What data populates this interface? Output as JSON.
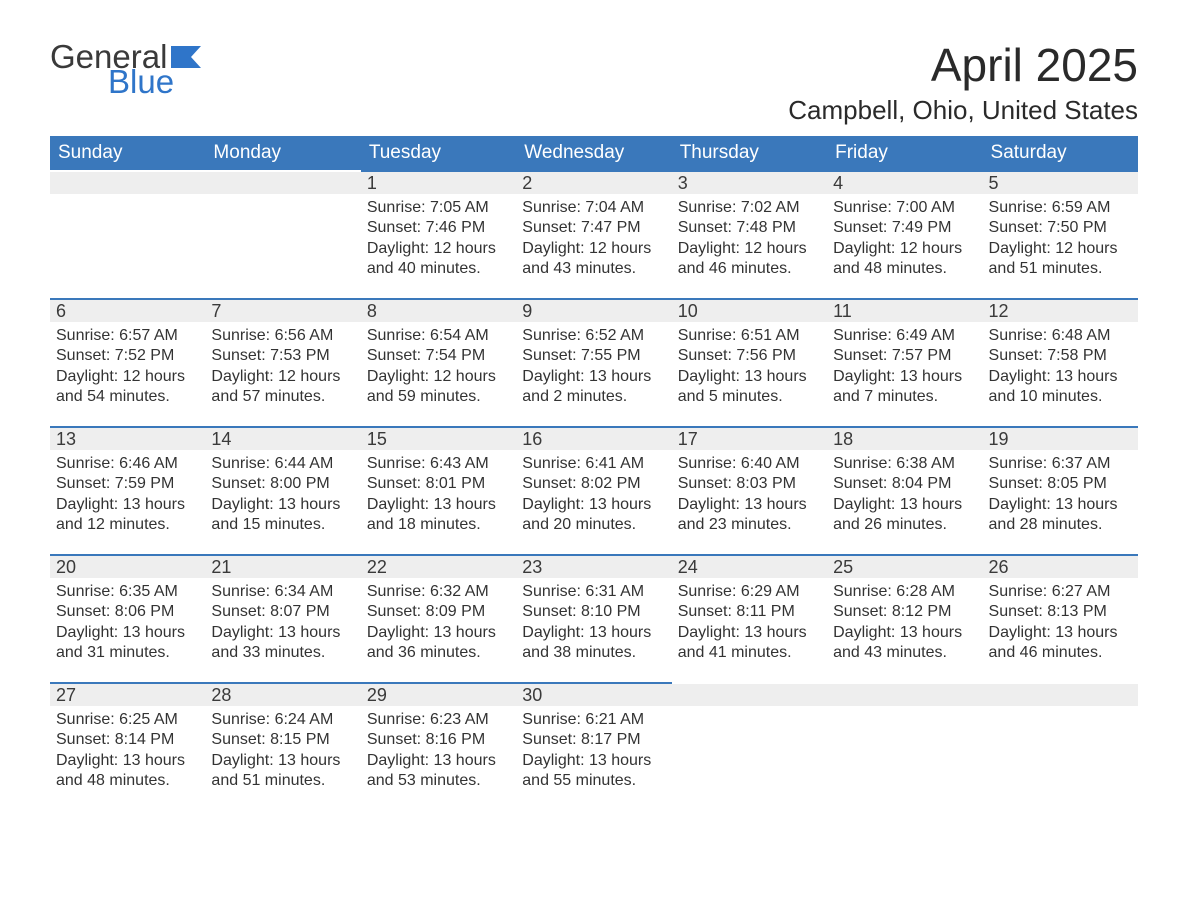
{
  "logo": {
    "text_general": "General",
    "text_blue": "Blue",
    "flag_color": "#2f75c9"
  },
  "title": "April 2025",
  "location": "Campbell, Ohio, United States",
  "header_bg": "#3a78bb",
  "header_text_color": "#ffffff",
  "daynum_bg": "#eeeeee",
  "row_divider_color": "#3a78bb",
  "body_text_color": "#333333",
  "day_headers": [
    "Sunday",
    "Monday",
    "Tuesday",
    "Wednesday",
    "Thursday",
    "Friday",
    "Saturday"
  ],
  "label_sunrise": "Sunrise:",
  "label_sunset": "Sunset:",
  "label_daylight": "Daylight:",
  "weeks": [
    [
      null,
      null,
      {
        "n": "1",
        "sr": "7:05 AM",
        "ss": "7:46 PM",
        "dl": "12 hours and 40 minutes."
      },
      {
        "n": "2",
        "sr": "7:04 AM",
        "ss": "7:47 PM",
        "dl": "12 hours and 43 minutes."
      },
      {
        "n": "3",
        "sr": "7:02 AM",
        "ss": "7:48 PM",
        "dl": "12 hours and 46 minutes."
      },
      {
        "n": "4",
        "sr": "7:00 AM",
        "ss": "7:49 PM",
        "dl": "12 hours and 48 minutes."
      },
      {
        "n": "5",
        "sr": "6:59 AM",
        "ss": "7:50 PM",
        "dl": "12 hours and 51 minutes."
      }
    ],
    [
      {
        "n": "6",
        "sr": "6:57 AM",
        "ss": "7:52 PM",
        "dl": "12 hours and 54 minutes."
      },
      {
        "n": "7",
        "sr": "6:56 AM",
        "ss": "7:53 PM",
        "dl": "12 hours and 57 minutes."
      },
      {
        "n": "8",
        "sr": "6:54 AM",
        "ss": "7:54 PM",
        "dl": "12 hours and 59 minutes."
      },
      {
        "n": "9",
        "sr": "6:52 AM",
        "ss": "7:55 PM",
        "dl": "13 hours and 2 minutes."
      },
      {
        "n": "10",
        "sr": "6:51 AM",
        "ss": "7:56 PM",
        "dl": "13 hours and 5 minutes."
      },
      {
        "n": "11",
        "sr": "6:49 AM",
        "ss": "7:57 PM",
        "dl": "13 hours and 7 minutes."
      },
      {
        "n": "12",
        "sr": "6:48 AM",
        "ss": "7:58 PM",
        "dl": "13 hours and 10 minutes."
      }
    ],
    [
      {
        "n": "13",
        "sr": "6:46 AM",
        "ss": "7:59 PM",
        "dl": "13 hours and 12 minutes."
      },
      {
        "n": "14",
        "sr": "6:44 AM",
        "ss": "8:00 PM",
        "dl": "13 hours and 15 minutes."
      },
      {
        "n": "15",
        "sr": "6:43 AM",
        "ss": "8:01 PM",
        "dl": "13 hours and 18 minutes."
      },
      {
        "n": "16",
        "sr": "6:41 AM",
        "ss": "8:02 PM",
        "dl": "13 hours and 20 minutes."
      },
      {
        "n": "17",
        "sr": "6:40 AM",
        "ss": "8:03 PM",
        "dl": "13 hours and 23 minutes."
      },
      {
        "n": "18",
        "sr": "6:38 AM",
        "ss": "8:04 PM",
        "dl": "13 hours and 26 minutes."
      },
      {
        "n": "19",
        "sr": "6:37 AM",
        "ss": "8:05 PM",
        "dl": "13 hours and 28 minutes."
      }
    ],
    [
      {
        "n": "20",
        "sr": "6:35 AM",
        "ss": "8:06 PM",
        "dl": "13 hours and 31 minutes."
      },
      {
        "n": "21",
        "sr": "6:34 AM",
        "ss": "8:07 PM",
        "dl": "13 hours and 33 minutes."
      },
      {
        "n": "22",
        "sr": "6:32 AM",
        "ss": "8:09 PM",
        "dl": "13 hours and 36 minutes."
      },
      {
        "n": "23",
        "sr": "6:31 AM",
        "ss": "8:10 PM",
        "dl": "13 hours and 38 minutes."
      },
      {
        "n": "24",
        "sr": "6:29 AM",
        "ss": "8:11 PM",
        "dl": "13 hours and 41 minutes."
      },
      {
        "n": "25",
        "sr": "6:28 AM",
        "ss": "8:12 PM",
        "dl": "13 hours and 43 minutes."
      },
      {
        "n": "26",
        "sr": "6:27 AM",
        "ss": "8:13 PM",
        "dl": "13 hours and 46 minutes."
      }
    ],
    [
      {
        "n": "27",
        "sr": "6:25 AM",
        "ss": "8:14 PM",
        "dl": "13 hours and 48 minutes."
      },
      {
        "n": "28",
        "sr": "6:24 AM",
        "ss": "8:15 PM",
        "dl": "13 hours and 51 minutes."
      },
      {
        "n": "29",
        "sr": "6:23 AM",
        "ss": "8:16 PM",
        "dl": "13 hours and 53 minutes."
      },
      {
        "n": "30",
        "sr": "6:21 AM",
        "ss": "8:17 PM",
        "dl": "13 hours and 55 minutes."
      },
      null,
      null,
      null
    ]
  ]
}
